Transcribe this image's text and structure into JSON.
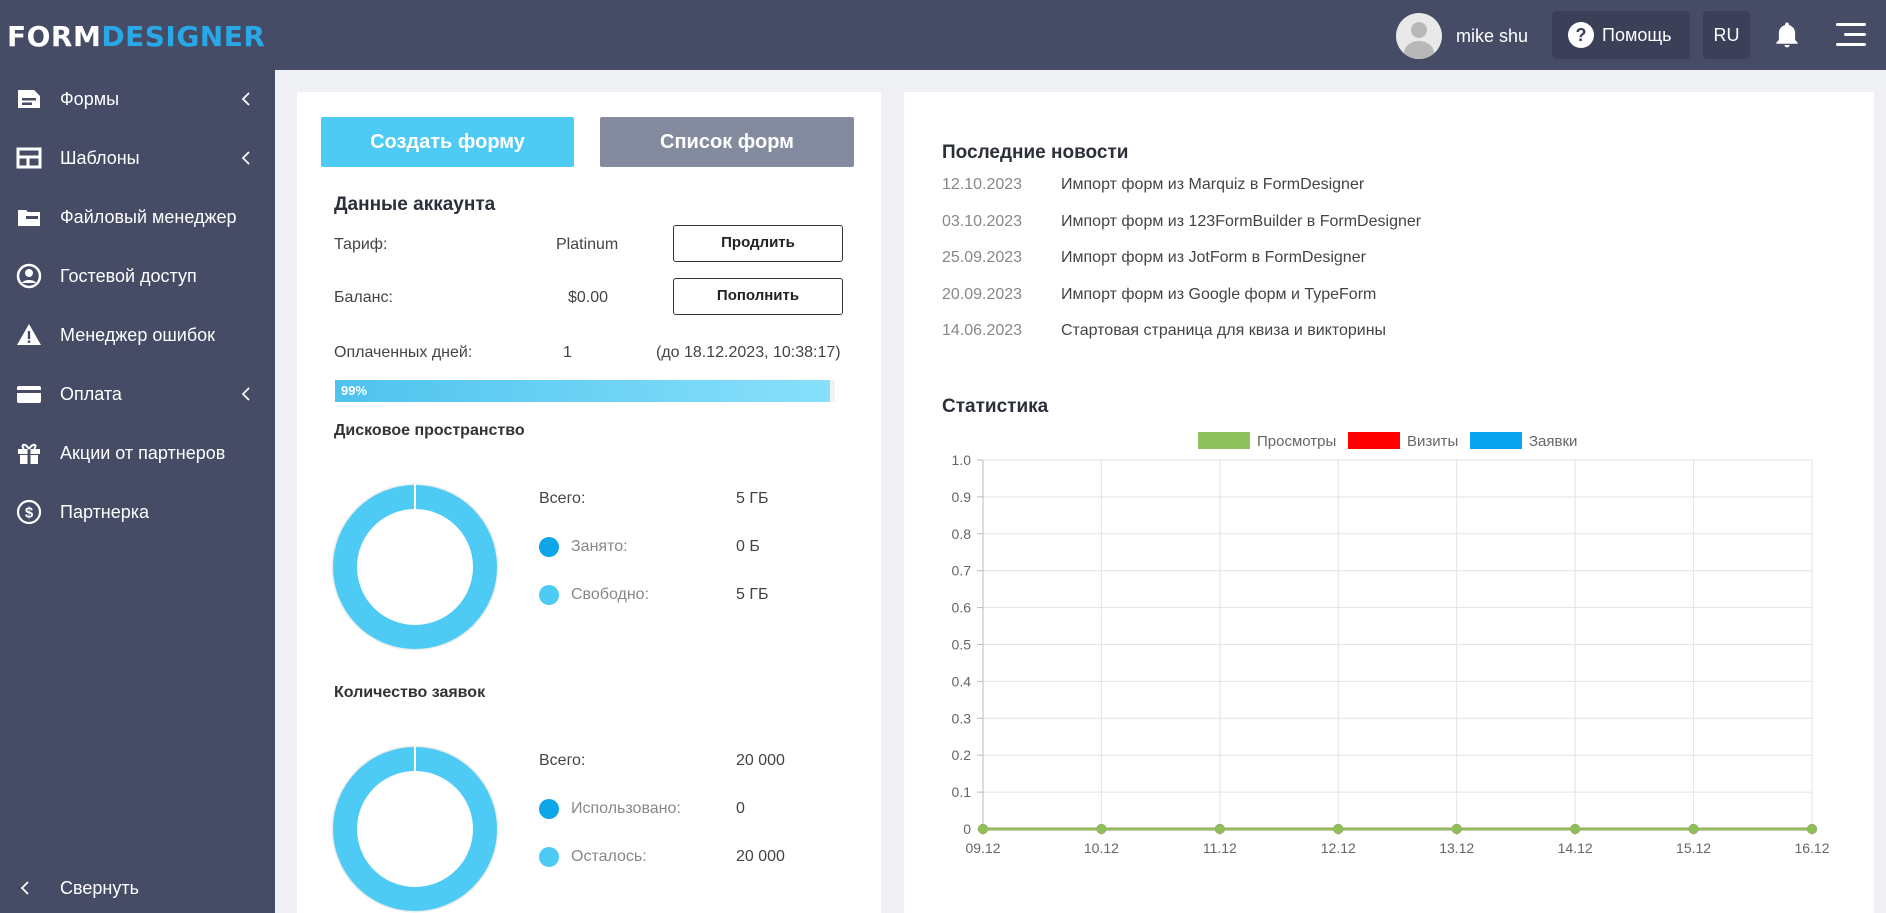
{
  "header": {
    "logo_part1": "FORM",
    "logo_part2": "DESIGNER",
    "user_name": "mike shu",
    "help_label": "Помощь",
    "lang": "RU"
  },
  "sidebar": {
    "items": [
      {
        "label": "Формы",
        "icon": "forms-icon",
        "has_submenu": true
      },
      {
        "label": "Шаблоны",
        "icon": "templates-icon",
        "has_submenu": true
      },
      {
        "label": "Файловый менеджер",
        "icon": "file-manager-icon",
        "has_submenu": false
      },
      {
        "label": "Гостевой доступ",
        "icon": "user-circle-icon",
        "has_submenu": false
      },
      {
        "label": "Менеджер ошибок",
        "icon": "warning-icon",
        "has_submenu": false
      },
      {
        "label": "Оплата",
        "icon": "credit-card-icon",
        "has_submenu": true
      },
      {
        "label": "Акции от партнеров",
        "icon": "gift-icon",
        "has_submenu": false
      },
      {
        "label": "Партнерка",
        "icon": "dollar-circle-icon",
        "has_submenu": false
      }
    ],
    "collapse_label": "Свернуть"
  },
  "account": {
    "create_form_label": "Создать форму",
    "form_list_label": "Список форм",
    "title": "Данные аккаунта",
    "tariff_label": "Тариф:",
    "tariff_value": "Platinum",
    "extend_label": "Продлить",
    "balance_label": "Баланс:",
    "balance_value": "$0.00",
    "topup_label": "Пополнить",
    "paid_days_label": "Оплаченных дней:",
    "paid_days_value": "1",
    "paid_until": "(до 18.12.2023, 10:38:17)",
    "progress_text": "99%",
    "progress_fraction": 0.99
  },
  "disk": {
    "title": "Дисковое пространство",
    "total_label": "Всего:",
    "total_value": "5 ГБ",
    "used_label": "Занято:",
    "used_value": "0 Б",
    "free_label": "Свободно:",
    "free_value": "5 ГБ",
    "used_fraction": 0.0
  },
  "submissions": {
    "title": "Количество заявок",
    "total_label": "Всего:",
    "total_value": "20 000",
    "used_label": "Использовано:",
    "used_value": "0",
    "left_label": "Осталось:",
    "left_value": "20 000",
    "used_fraction": 0.0
  },
  "news": {
    "title": "Последние новости",
    "items": [
      {
        "date": "12.10.2023",
        "title": "Импорт форм из Marquiz в FormDesigner"
      },
      {
        "date": "03.10.2023",
        "title": "Импорт форм из 123FormBuilder в FormDesigner"
      },
      {
        "date": "25.09.2023",
        "title": "Импорт форм из JotForm в FormDesigner"
      },
      {
        "date": "20.09.2023",
        "title": "Импорт форм из Google форм и TypeForm"
      },
      {
        "date": "14.06.2023",
        "title": "Стартовая страница для квиза и викторины"
      }
    ]
  },
  "stats_title": "Статистика",
  "colors": {
    "sidebar_bg": "#464c66",
    "accent": "#4ecbf5",
    "donut_used": "#0ea5e9",
    "donut_free": "#4ecbf5"
  },
  "chart_data": {
    "type": "line",
    "title": "",
    "xlabel": "",
    "ylabel": "",
    "categories": [
      "09.12",
      "10.12",
      "11.12",
      "12.12",
      "13.12",
      "14.12",
      "15.12",
      "16.12"
    ],
    "series": [
      {
        "name": "Просмотры",
        "color": "#8dc05a",
        "values": [
          0,
          0,
          0,
          0,
          0,
          0,
          0,
          0
        ]
      },
      {
        "name": "Визиты",
        "color": "#ff0000",
        "values": [
          0,
          0,
          0,
          0,
          0,
          0,
          0,
          0
        ]
      },
      {
        "name": "Заявки",
        "color": "#0aa4ee",
        "values": [
          0,
          0,
          0,
          0,
          0,
          0,
          0,
          0
        ]
      }
    ],
    "ylim": [
      0,
      1.0
    ],
    "yticks": [
      "1.0",
      "0.9",
      "0.8",
      "0.7",
      "0.6",
      "0.5",
      "0.4",
      "0.3",
      "0.2",
      "0.1",
      "0"
    ],
    "grid": true,
    "legend": "top-center"
  }
}
